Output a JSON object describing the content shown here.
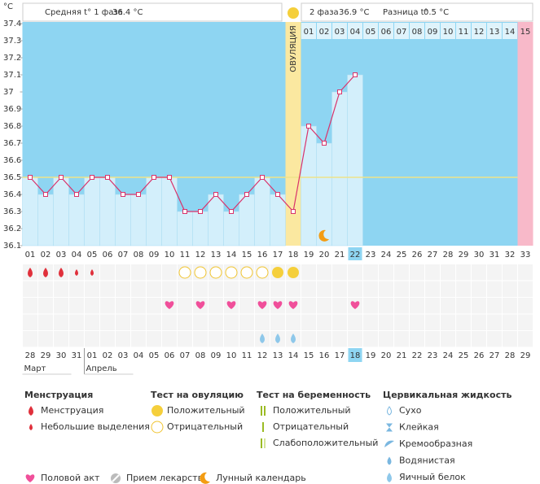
{
  "header": {
    "unit": "°C",
    "phase1_label": "Средняя t° 1 фаза",
    "phase1_value": "36.4 °C",
    "phase2_label": "2 фаза",
    "phase2_value": "36.9 °C",
    "diff_label": "Разница t°",
    "diff_value": "0.5 °C"
  },
  "chart_data": {
    "type": "line",
    "color": "#d9336b",
    "x": [
      "01",
      "02",
      "03",
      "04",
      "05",
      "06",
      "07",
      "08",
      "09",
      "10",
      "11",
      "12",
      "13",
      "14",
      "15",
      "16",
      "17",
      "18",
      "19",
      "20",
      "21",
      "22",
      "23",
      "24",
      "25",
      "26",
      "27",
      "28",
      "29",
      "30",
      "31",
      "32",
      "33"
    ],
    "values": [
      36.5,
      36.4,
      36.5,
      36.4,
      36.5,
      36.5,
      36.4,
      36.4,
      36.5,
      36.5,
      36.3,
      36.3,
      36.4,
      36.3,
      36.4,
      36.5,
      36.4,
      36.3,
      36.8,
      36.7,
      37.0,
      37.1,
      null,
      null,
      null,
      null,
      null,
      null,
      null,
      null,
      null,
      null,
      null
    ],
    "ylim": [
      36.1,
      37.4
    ],
    "yticks": [
      36.1,
      36.2,
      36.3,
      36.4,
      36.5,
      36.6,
      36.7,
      36.8,
      36.9,
      37,
      37.1,
      37.2,
      37.3,
      37.4
    ],
    "cover_line": 36.5,
    "ovulation_label": "ОВУЛЯЦИЯ",
    "ovulation_day": 18,
    "phase2_days": [
      "01",
      "02",
      "03",
      "04",
      "05",
      "06",
      "07",
      "08",
      "09",
      "10",
      "11",
      "12",
      "13",
      "14",
      "15"
    ],
    "highlight_day": 22,
    "dates": [
      "28",
      "29",
      "30",
      "31",
      "01",
      "02",
      "03",
      "04",
      "05",
      "06",
      "07",
      "08",
      "09",
      "10",
      "11",
      "12",
      "13",
      "14",
      "15",
      "16",
      "17",
      "18",
      "19",
      "20",
      "21",
      "22",
      "23",
      "24",
      "25",
      "26",
      "27",
      "28",
      "29"
    ],
    "holidays": [
      1,
      2,
      8,
      9,
      15,
      16,
      22,
      23,
      29,
      30
    ],
    "months": [
      {
        "label": "Март",
        "day": 1
      },
      {
        "label": "Апрель",
        "day": 5
      }
    ]
  },
  "legend": {
    "groups": [
      {
        "title": "Менструация",
        "items": [
          {
            "label": "Менструация",
            "days": [
              1,
              2,
              3
            ]
          },
          {
            "label": "Небольшие выделения",
            "days": [
              4,
              5
            ]
          }
        ]
      },
      {
        "title": "Тест на овуляцию",
        "items": [
          {
            "label": "Положительный",
            "days": [
              17,
              18
            ]
          },
          {
            "label": "Отрицательный",
            "days": [
              11,
              12,
              13,
              14,
              15,
              16
            ]
          }
        ]
      },
      {
        "title": "Тест на беременность",
        "items": [
          {
            "label": "Положительный"
          },
          {
            "label": "Отрицательный"
          },
          {
            "label": "Слабоположительный"
          }
        ]
      },
      {
        "title": "Цервикальная жидкость",
        "items": [
          {
            "label": "Сухо"
          },
          {
            "label": "Клейкая"
          },
          {
            "label": "Кремообразная"
          },
          {
            "label": "Водянистая"
          },
          {
            "label": "Яичный белок",
            "days": [
              16,
              17,
              18
            ]
          }
        ]
      }
    ],
    "other": [
      {
        "label": "Половой акт",
        "days": [
          10,
          12,
          14,
          16,
          17,
          18,
          22
        ]
      },
      {
        "label": "Прием лекарств"
      },
      {
        "label": "Лунный календарь",
        "days": [
          20
        ]
      }
    ]
  }
}
